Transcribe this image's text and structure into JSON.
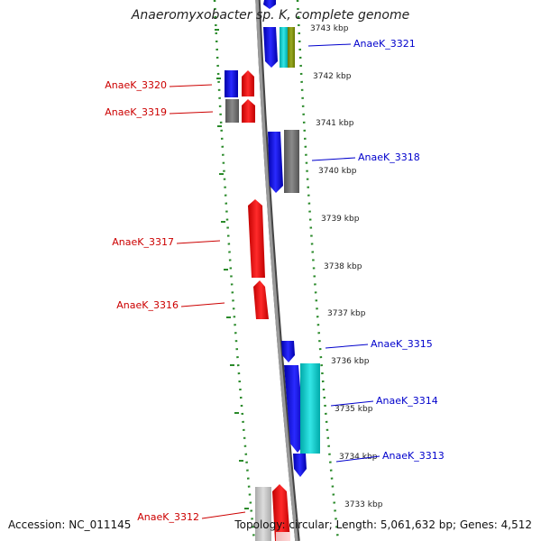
{
  "title": "Anaeromyxobacter sp. K, complete genome",
  "footer": {
    "accession": "Accession: NC_011145",
    "topology": "Topology: circular; Length: 5,061,632 bp; Genes: 4,512"
  },
  "colors": {
    "forward_label": "#0000cc",
    "reverse_label": "#cc0000",
    "backbone": "#8a8a8a",
    "dotted_ring": "#2a8a2a"
  },
  "ticks": [
    {
      "label": "3743 kbp"
    },
    {
      "label": "3742 kbp"
    },
    {
      "label": "3741 kbp"
    },
    {
      "label": "3740 kbp"
    },
    {
      "label": "3739 kbp"
    },
    {
      "label": "3738 kbp"
    },
    {
      "label": "3737 kbp"
    },
    {
      "label": "3736 kbp"
    },
    {
      "label": "3735 kbp"
    },
    {
      "label": "3734 kbp"
    },
    {
      "label": "3733 kbp"
    }
  ],
  "gene_labels": [
    {
      "text": "AnaeK_3321",
      "strand": "forward"
    },
    {
      "text": "AnaeK_3320",
      "strand": "reverse"
    },
    {
      "text": "AnaeK_3319",
      "strand": "reverse"
    },
    {
      "text": "AnaeK_3318",
      "strand": "forward"
    },
    {
      "text": "AnaeK_3317",
      "strand": "reverse"
    },
    {
      "text": "AnaeK_3316",
      "strand": "reverse"
    },
    {
      "text": "AnaeK_3315",
      "strand": "forward"
    },
    {
      "text": "AnaeK_3314",
      "strand": "forward"
    },
    {
      "text": "AnaeK_3313",
      "strand": "forward"
    },
    {
      "text": "AnaeK_3312",
      "strand": "reverse"
    }
  ]
}
